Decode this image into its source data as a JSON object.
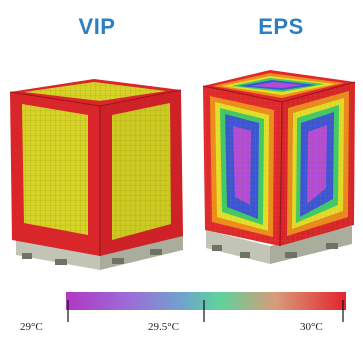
{
  "panels": {
    "left_title": "VIP",
    "right_title": "EPS"
  },
  "legend": {
    "min_label": "29°C",
    "mid_label": "29.5°C",
    "max_label": "30°C"
  },
  "colors": {
    "title": "#2e7fc1",
    "hot": "#d9202a",
    "warm_yellow": "#d8d823",
    "green": "#41c96d",
    "blue": "#3b55d6",
    "purple": "#b44bd6",
    "pallet": "#bfc3b2"
  }
}
